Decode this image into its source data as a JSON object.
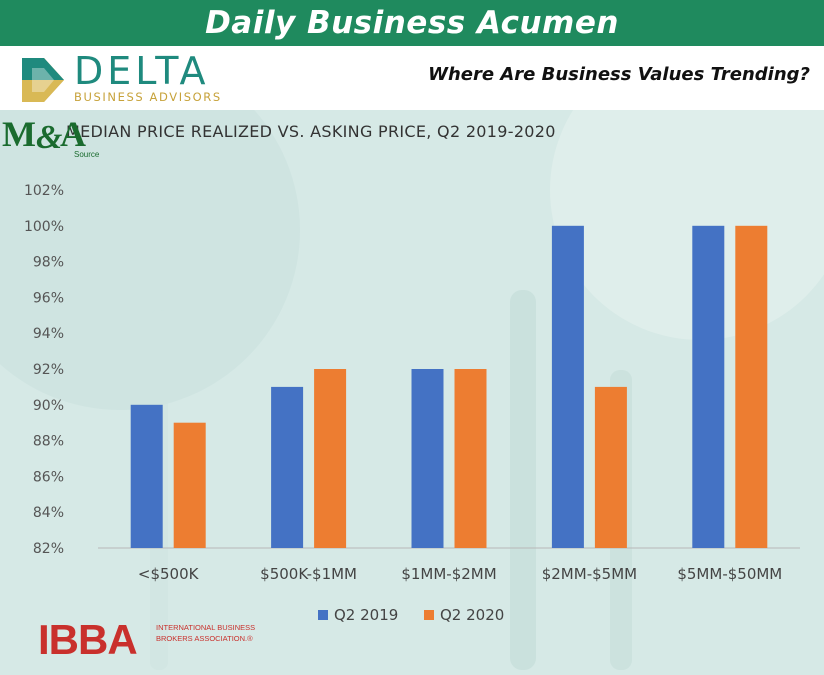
{
  "header": {
    "title": "Daily Business Acumen",
    "color": "#1f8a5e"
  },
  "brand": {
    "logo_word": "DELTA",
    "logo_sub": "BUSINESS ADVISORS",
    "tagline": "Where Are Business Values Trending?"
  },
  "footer": {
    "ibba_logo": "IBBA",
    "ibba_text": "INTERNATIONAL BUSINESS BROKERS ASSOCIATION.®",
    "mna_logo": "M&A Source"
  },
  "chart_data": {
    "type": "bar",
    "title": "MEDIAN PRICE REALIZED VS. ASKING PRICE, Q2 2019-2020",
    "categories": [
      "<$500K",
      "$500K-$1MM",
      "$1MM-$2MM",
      "$2MM-$5MM",
      "$5MM-$50MM"
    ],
    "series": [
      {
        "name": "Q2 2019",
        "color": "#4472c4",
        "values": [
          90,
          91,
          92,
          100,
          100
        ]
      },
      {
        "name": "Q2 2020",
        "color": "#ed7d31",
        "values": [
          89,
          92,
          92,
          91,
          100
        ]
      }
    ],
    "ylim": [
      82,
      102
    ],
    "yticks": [
      "82%",
      "84%",
      "86%",
      "88%",
      "90%",
      "92%",
      "94%",
      "96%",
      "98%",
      "100%",
      "102%"
    ],
    "ytick_values": [
      82,
      84,
      86,
      88,
      90,
      92,
      94,
      96,
      98,
      100,
      102
    ],
    "legend": "bottom",
    "grid": false
  }
}
